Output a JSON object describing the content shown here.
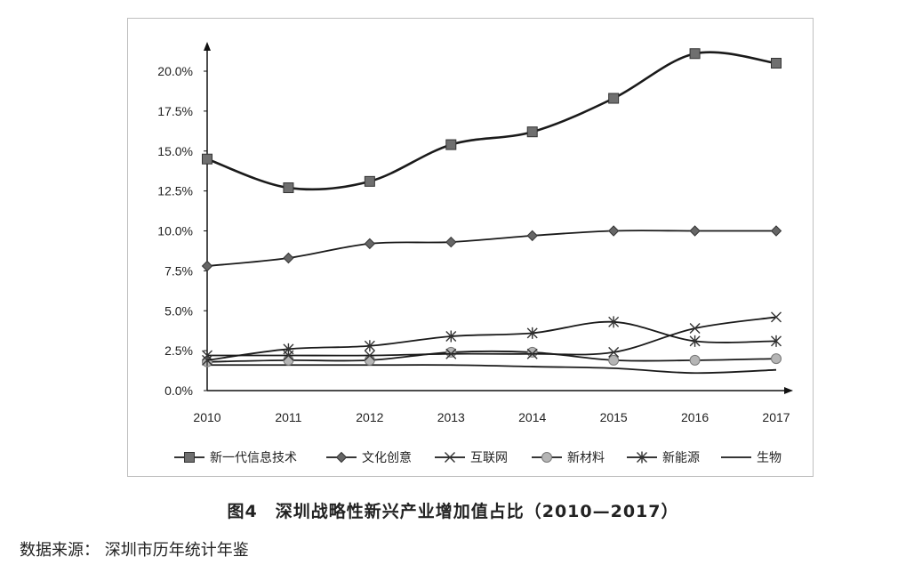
{
  "chart_data": {
    "type": "line",
    "x": [
      "2010",
      "2011",
      "2012",
      "2013",
      "2014",
      "2015",
      "2016",
      "2017"
    ],
    "ylim": [
      0,
      0.2
    ],
    "yticks": [
      "0.0%",
      "2.5%",
      "5.0%",
      "7.5%",
      "10.0%",
      "12.5%",
      "15.0%",
      "17.5%",
      "20.0%"
    ],
    "ytick_values": [
      0,
      0.025,
      0.05,
      0.075,
      0.1,
      0.125,
      0.15,
      0.175,
      0.2
    ],
    "grid": false,
    "legend_position": "bottom",
    "series": [
      {
        "name": "新一代信息技术",
        "marker": "square",
        "values": [
          0.145,
          0.127,
          0.131,
          0.154,
          0.162,
          0.183,
          0.211,
          0.205
        ]
      },
      {
        "name": "文化创意",
        "marker": "diamond",
        "values": [
          0.078,
          0.083,
          0.092,
          0.093,
          0.097,
          0.1,
          0.1,
          0.1
        ]
      },
      {
        "name": "互联网",
        "marker": "x",
        "values": [
          0.022,
          0.022,
          0.022,
          0.023,
          0.023,
          0.024,
          0.039,
          0.046
        ]
      },
      {
        "name": "新材料",
        "marker": "circle",
        "values": [
          0.018,
          0.019,
          0.019,
          0.024,
          0.024,
          0.019,
          0.019,
          0.02
        ]
      },
      {
        "name": "新能源",
        "marker": "star",
        "values": [
          0.019,
          0.026,
          0.028,
          0.034,
          0.036,
          0.043,
          0.031,
          0.031
        ]
      },
      {
        "name": "生物",
        "marker": "none",
        "values": [
          0.016,
          0.016,
          0.016,
          0.016,
          0.015,
          0.014,
          0.011,
          0.013
        ]
      }
    ]
  },
  "caption": "图4　深圳战略性新兴产业增加值占比（2010—2017）",
  "source": "数据来源：  深圳市历年统计年鉴"
}
